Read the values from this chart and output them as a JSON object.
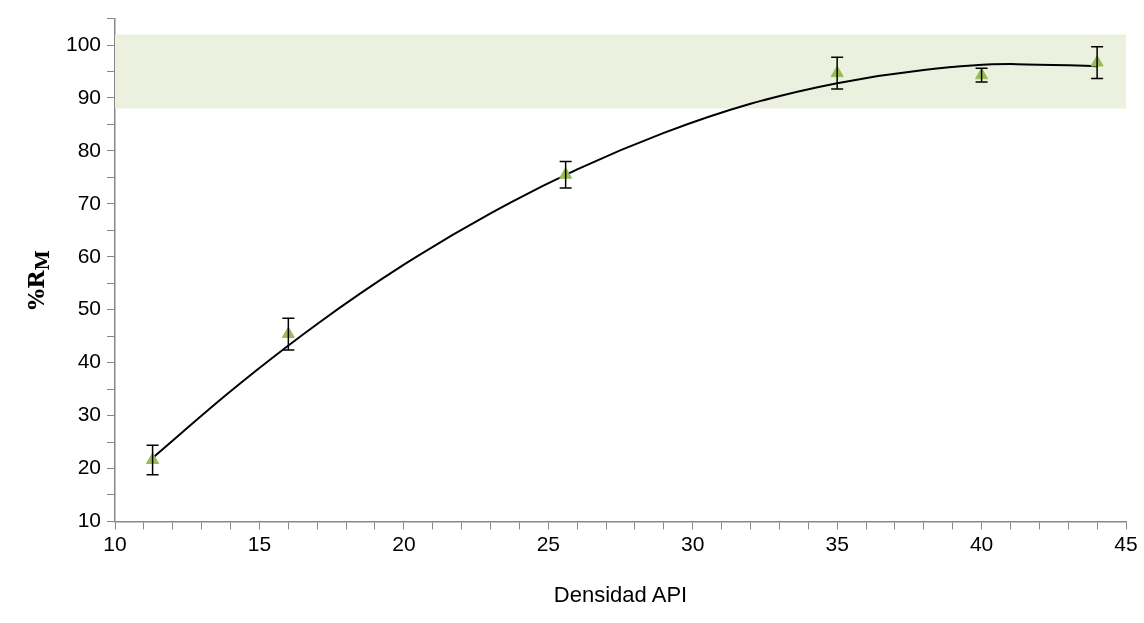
{
  "chart_data": {
    "type": "scatter",
    "xlabel": "Densidad API",
    "ylabel": "%R$_{M}$",
    "xlim": [
      10,
      45
    ],
    "ylim": [
      10,
      105
    ],
    "xticks": [
      10,
      {
        "value": 11,
        "label": null
      },
      {
        "value": 12,
        "label": null
      },
      {
        "value": 13,
        "label": null
      },
      {
        "value": 14,
        "label": null
      },
      15,
      {
        "value": 16,
        "label": null
      },
      {
        "value": 17,
        "label": null
      },
      {
        "value": 18,
        "label": null
      },
      {
        "value": 19,
        "label": null
      },
      20,
      {
        "value": 21,
        "label": null
      },
      {
        "value": 22,
        "label": null
      },
      {
        "value": 23,
        "label": null
      },
      {
        "value": 24,
        "label": null
      },
      25,
      {
        "value": 26,
        "label": null
      },
      {
        "value": 27,
        "label": null
      },
      {
        "value": 28,
        "label": null
      },
      {
        "value": 29,
        "label": null
      },
      30,
      {
        "value": 31,
        "label": null
      },
      {
        "value": 32,
        "label": null
      },
      {
        "value": 33,
        "label": null
      },
      {
        "value": 34,
        "label": null
      },
      35,
      {
        "value": 36,
        "label": null
      },
      {
        "value": 37,
        "label": null
      },
      {
        "value": 38,
        "label": null
      },
      {
        "value": 39,
        "label": null
      },
      40,
      {
        "value": 41,
        "label": null
      },
      {
        "value": 42,
        "label": null
      },
      {
        "value": 43,
        "label": null
      },
      {
        "value": 44,
        "label": null
      },
      45
    ],
    "yticks": [
      10,
      {
        "value": 15,
        "label": null
      },
      20,
      {
        "value": 25,
        "label": null
      },
      30,
      {
        "value": 35,
        "label": null
      },
      40,
      {
        "value": 45,
        "label": null
      },
      50,
      {
        "value": 55,
        "label": null
      },
      60,
      {
        "value": 65,
        "label": null
      },
      70,
      {
        "value": 75,
        "label": null
      },
      80,
      {
        "value": 85,
        "label": null
      },
      90,
      {
        "value": 95,
        "label": null
      },
      100,
      {
        "value": 105,
        "label": null
      }
    ],
    "grid": false,
    "legend": false,
    "bands": [
      {
        "axis": "y",
        "from": 88,
        "to": 102,
        "color": "#ebf1de"
      }
    ],
    "series": [
      {
        "color": "#9bbb59",
        "marker": "triangle",
        "x": [
          11.3,
          16,
          25.6,
          35,
          40,
          44
        ],
        "values": [
          21.6,
          45.4,
          75.5,
          94.7,
          94.3,
          96.7
        ],
        "errors": [
          2.8,
          3,
          2.5,
          3,
          1.3,
          3
        ]
      },
      {
        "type": "line",
        "color": "#000000",
        "marker": "none",
        "line_style": "solid",
        "x": [
          11.3,
          14,
          17,
          20,
          23,
          26,
          29,
          32,
          35,
          38,
          41,
          44
        ],
        "values": [
          22.0,
          34.6,
          47.3,
          58.5,
          68.2,
          76.5,
          83.4,
          88.9,
          92.8,
          95.3,
          96.4,
          96.0
        ]
      }
    ]
  }
}
